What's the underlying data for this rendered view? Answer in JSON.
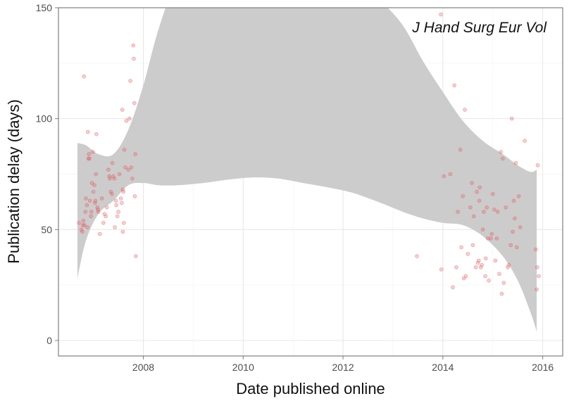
{
  "chart_data": {
    "type": "scatter",
    "title": "",
    "annotation": "J Hand Surg Eur Vol",
    "xlabel": "Date published online",
    "ylabel": "Publication delay (days)",
    "xlim": [
      2006.3,
      2016.4
    ],
    "ylim": [
      -7,
      150
    ],
    "x_ticks": [
      2008,
      2010,
      2012,
      2014,
      2016
    ],
    "y_ticks": [
      0,
      50,
      100,
      150
    ],
    "x_minor_ticks": [
      2009,
      2011,
      2013,
      2015
    ],
    "y_minor_ticks": [
      25,
      75,
      125
    ],
    "grid": true,
    "point_color": "#e8494c",
    "band_color": "#cccccc",
    "points": [
      [
        2006.71,
        53
      ],
      [
        2006.76,
        50
      ],
      [
        2006.78,
        49
      ],
      [
        2006.79,
        52
      ],
      [
        2006.8,
        54
      ],
      [
        2006.81,
        119
      ],
      [
        2006.82,
        52
      ],
      [
        2006.84,
        58
      ],
      [
        2006.85,
        64
      ],
      [
        2006.87,
        61
      ],
      [
        2006.88,
        51
      ],
      [
        2006.89,
        94
      ],
      [
        2006.9,
        82
      ],
      [
        2006.91,
        84
      ],
      [
        2006.92,
        82
      ],
      [
        2006.93,
        63
      ],
      [
        2006.95,
        56
      ],
      [
        2006.96,
        58
      ],
      [
        2006.97,
        71
      ],
      [
        2006.99,
        85
      ],
      [
        2007.0,
        67
      ],
      [
        2007.02,
        70
      ],
      [
        2007.03,
        62
      ],
      [
        2007.04,
        63
      ],
      [
        2007.05,
        75
      ],
      [
        2007.06,
        93
      ],
      [
        2007.08,
        60
      ],
      [
        2007.09,
        59
      ],
      [
        2007.1,
        58
      ],
      [
        2007.13,
        48
      ],
      [
        2007.17,
        64
      ],
      [
        2007.2,
        53
      ],
      [
        2007.22,
        57
      ],
      [
        2007.25,
        56
      ],
      [
        2007.27,
        60
      ],
      [
        2007.3,
        77
      ],
      [
        2007.32,
        74
      ],
      [
        2007.33,
        73
      ],
      [
        2007.35,
        67
      ],
      [
        2007.37,
        66
      ],
      [
        2007.38,
        80
      ],
      [
        2007.4,
        74
      ],
      [
        2007.42,
        73
      ],
      [
        2007.43,
        51
      ],
      [
        2007.45,
        63
      ],
      [
        2007.46,
        61
      ],
      [
        2007.48,
        56
      ],
      [
        2007.5,
        58
      ],
      [
        2007.52,
        75
      ],
      [
        2007.55,
        64
      ],
      [
        2007.57,
        62
      ],
      [
        2007.58,
        104
      ],
      [
        2007.59,
        68
      ],
      [
        2007.6,
        67
      ],
      [
        2007.61,
        53
      ],
      [
        2007.62,
        86
      ],
      [
        2007.64,
        78
      ],
      [
        2007.66,
        99
      ],
      [
        2007.7,
        77
      ],
      [
        2007.72,
        100
      ],
      [
        2007.74,
        117
      ],
      [
        2007.76,
        78
      ],
      [
        2007.78,
        73
      ],
      [
        2007.8,
        133
      ],
      [
        2007.81,
        127
      ],
      [
        2007.82,
        107
      ],
      [
        2007.83,
        65
      ],
      [
        2007.84,
        84
      ],
      [
        2007.85,
        38
      ],
      [
        2007.59,
        49
      ],
      [
        2013.48,
        38
      ],
      [
        2013.96,
        147
      ],
      [
        2013.97,
        32
      ],
      [
        2014.02,
        74
      ],
      [
        2014.15,
        75
      ],
      [
        2014.2,
        24
      ],
      [
        2014.23,
        115
      ],
      [
        2014.27,
        33
      ],
      [
        2014.3,
        58
      ],
      [
        2014.35,
        86
      ],
      [
        2014.37,
        42
      ],
      [
        2014.4,
        65
      ],
      [
        2014.42,
        28
      ],
      [
        2014.44,
        104
      ],
      [
        2014.46,
        29
      ],
      [
        2014.5,
        39
      ],
      [
        2014.55,
        60
      ],
      [
        2014.58,
        71
      ],
      [
        2014.6,
        43
      ],
      [
        2014.62,
        56
      ],
      [
        2014.66,
        33
      ],
      [
        2014.68,
        67
      ],
      [
        2014.7,
        35
      ],
      [
        2014.72,
        36
      ],
      [
        2014.73,
        63
      ],
      [
        2014.74,
        69
      ],
      [
        2014.76,
        33
      ],
      [
        2014.78,
        34
      ],
      [
        2014.8,
        50
      ],
      [
        2014.82,
        58
      ],
      [
        2014.85,
        29
      ],
      [
        2014.86,
        37
      ],
      [
        2014.88,
        60
      ],
      [
        2014.9,
        46
      ],
      [
        2014.92,
        27
      ],
      [
        2014.96,
        46
      ],
      [
        2014.98,
        48
      ],
      [
        2015.0,
        66
      ],
      [
        2015.03,
        59
      ],
      [
        2015.05,
        36
      ],
      [
        2015.08,
        46
      ],
      [
        2015.1,
        58
      ],
      [
        2015.13,
        30
      ],
      [
        2015.16,
        85
      ],
      [
        2015.18,
        21
      ],
      [
        2015.2,
        82
      ],
      [
        2015.22,
        26
      ],
      [
        2015.26,
        60
      ],
      [
        2015.3,
        33
      ],
      [
        2015.32,
        34
      ],
      [
        2015.36,
        43
      ],
      [
        2015.38,
        100
      ],
      [
        2015.4,
        49
      ],
      [
        2015.42,
        63
      ],
      [
        2015.44,
        55
      ],
      [
        2015.46,
        80
      ],
      [
        2015.48,
        42
      ],
      [
        2015.52,
        65
      ],
      [
        2015.55,
        51
      ],
      [
        2015.64,
        90
      ],
      [
        2015.86,
        41
      ],
      [
        2015.88,
        23
      ],
      [
        2015.89,
        33
      ],
      [
        2015.9,
        79
      ],
      [
        2015.92,
        29
      ]
    ],
    "confidence_band": {
      "x": [
        2006.68,
        2006.85,
        2007.1,
        2007.4,
        2007.7,
        2008.0,
        2008.3,
        2008.7,
        2009.2,
        2009.7,
        2010.2,
        2010.7,
        2011.2,
        2011.7,
        2012.2,
        2012.7,
        2013.2,
        2013.6,
        2014.0,
        2014.4,
        2014.8,
        2015.2,
        2015.5,
        2015.75,
        2015.88
      ],
      "upper": [
        89,
        88,
        84,
        84,
        95,
        115,
        140,
        165,
        185,
        200,
        206,
        203,
        195,
        182,
        170,
        155,
        142,
        126,
        112,
        99,
        90,
        84,
        79,
        76,
        77
      ],
      "lower": [
        28,
        45,
        57,
        63,
        70,
        71,
        70,
        70,
        71,
        72.5,
        73.5,
        73,
        71,
        69,
        66.5,
        62.5,
        58,
        55,
        53,
        52,
        47,
        38,
        27,
        13,
        4
      ]
    }
  }
}
